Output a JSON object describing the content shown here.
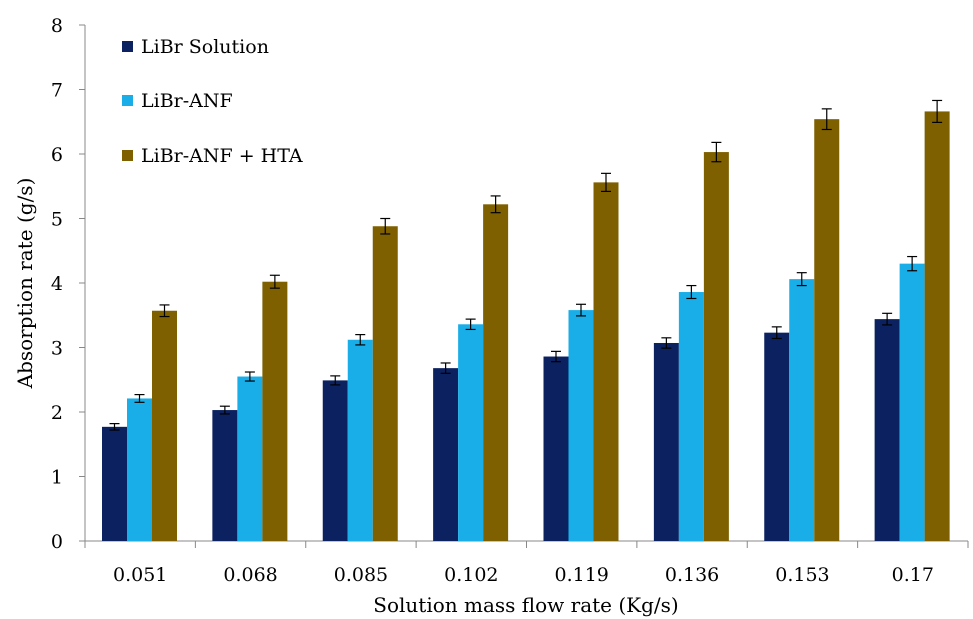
{
  "chart_data": {
    "type": "bar",
    "title": "",
    "xlabel": "Solution mass flow rate (Kg/s)",
    "ylabel": "Absorption rate (g/s)",
    "ylim": [
      0,
      8
    ],
    "yticks": [
      "0",
      "1",
      "2",
      "3",
      "4",
      "5",
      "6",
      "7",
      "8"
    ],
    "categories": [
      "0.051",
      "0.068",
      "0.085",
      "0.102",
      "0.119",
      "0.136",
      "0.153",
      "0.17"
    ],
    "grid": false,
    "legend_position": "top-left",
    "series": [
      {
        "name": "LiBr Solution",
        "color": "#0b2160",
        "values": [
          1.77,
          2.03,
          2.49,
          2.68,
          2.86,
          3.07,
          3.23,
          3.44
        ],
        "errors": [
          0.05,
          0.06,
          0.07,
          0.08,
          0.08,
          0.08,
          0.09,
          0.09
        ]
      },
      {
        "name": "LiBr-ANF",
        "color": "#1aaee8",
        "values": [
          2.21,
          2.55,
          3.12,
          3.36,
          3.58,
          3.86,
          4.06,
          4.3
        ],
        "errors": [
          0.06,
          0.07,
          0.08,
          0.08,
          0.09,
          0.1,
          0.1,
          0.11
        ]
      },
      {
        "name": "LiBr-ANF + HTA",
        "color": "#7f6000",
        "values": [
          3.57,
          4.02,
          4.88,
          5.22,
          5.56,
          6.03,
          6.54,
          6.66
        ],
        "errors": [
          0.09,
          0.1,
          0.12,
          0.13,
          0.14,
          0.15,
          0.16,
          0.17
        ]
      }
    ]
  }
}
